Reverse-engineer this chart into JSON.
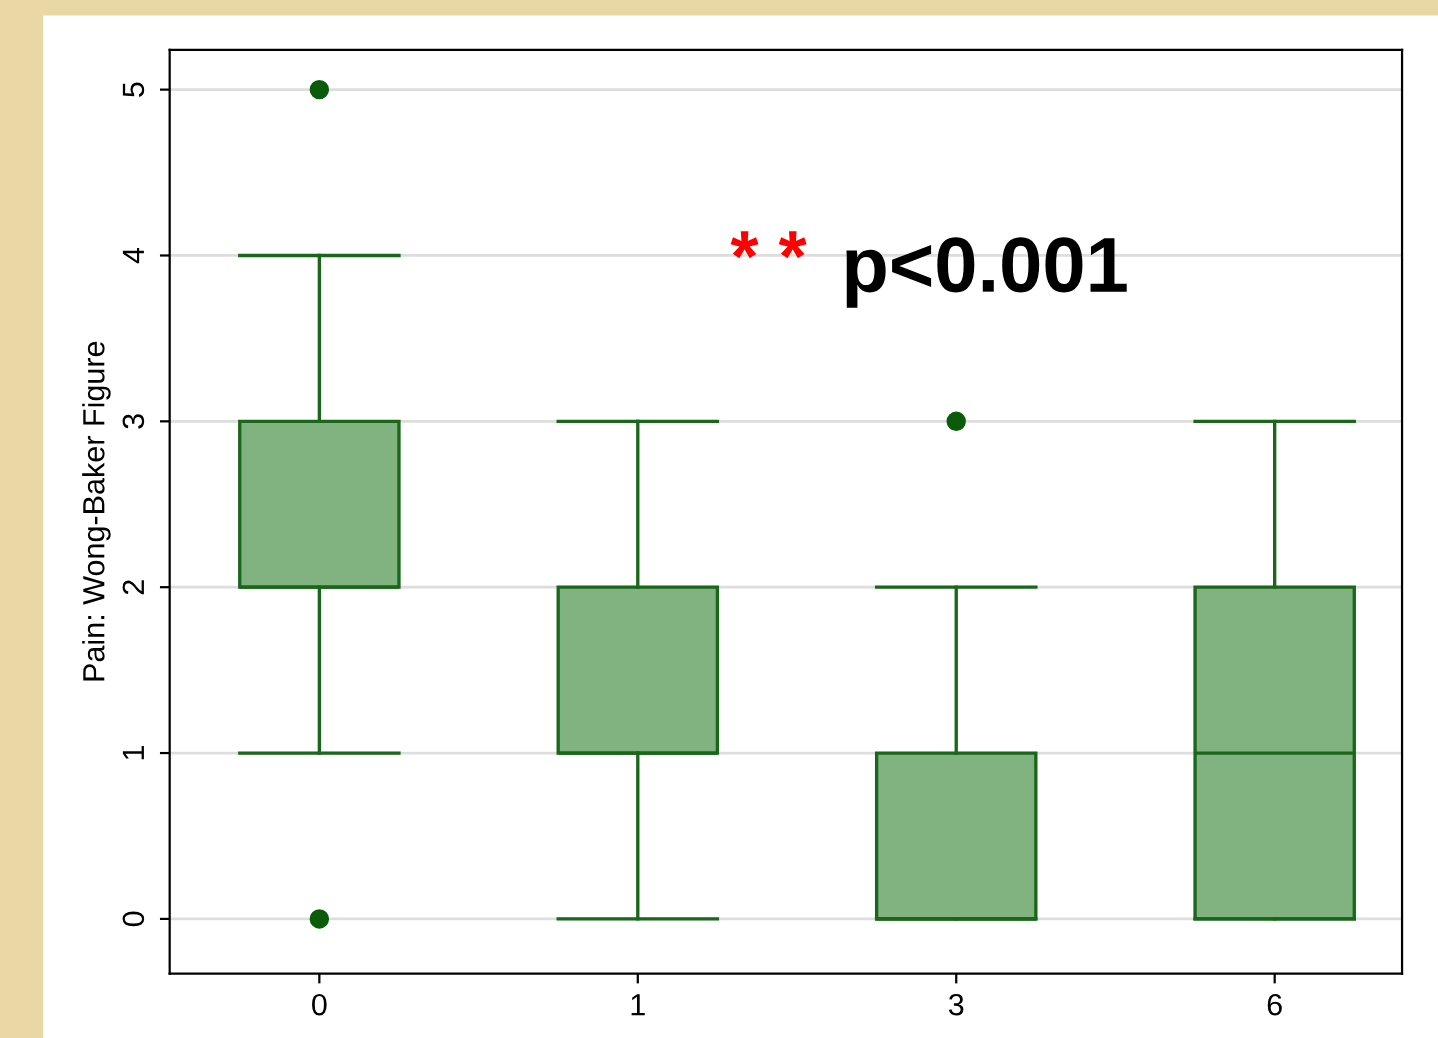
{
  "chart_data": {
    "type": "box",
    "ylabel": "Pain: Wong-Baker Figure",
    "categories": [
      "0",
      "1",
      "3",
      "6"
    ],
    "boxes": [
      {
        "low": 1,
        "q1": 2,
        "median": 2,
        "q3": 3,
        "high": 4,
        "outliers": [
          5,
          0
        ]
      },
      {
        "low": 0,
        "q1": 1,
        "median": 1,
        "q3": 2,
        "high": 3
      },
      {
        "low": 0,
        "q1": 0,
        "median": 0,
        "q3": 1,
        "high": 2,
        "outliers": [
          3
        ]
      },
      {
        "low": 0,
        "q1": 0,
        "median": 1,
        "q3": 2,
        "high": 3
      }
    ],
    "color": "#80b380",
    "ylim": [
      -0.33,
      5.24
    ],
    "yticks": [
      0,
      1,
      2,
      3,
      4,
      5
    ],
    "grid": "y",
    "annotations": [
      "* *",
      "p<0.001"
    ]
  }
}
